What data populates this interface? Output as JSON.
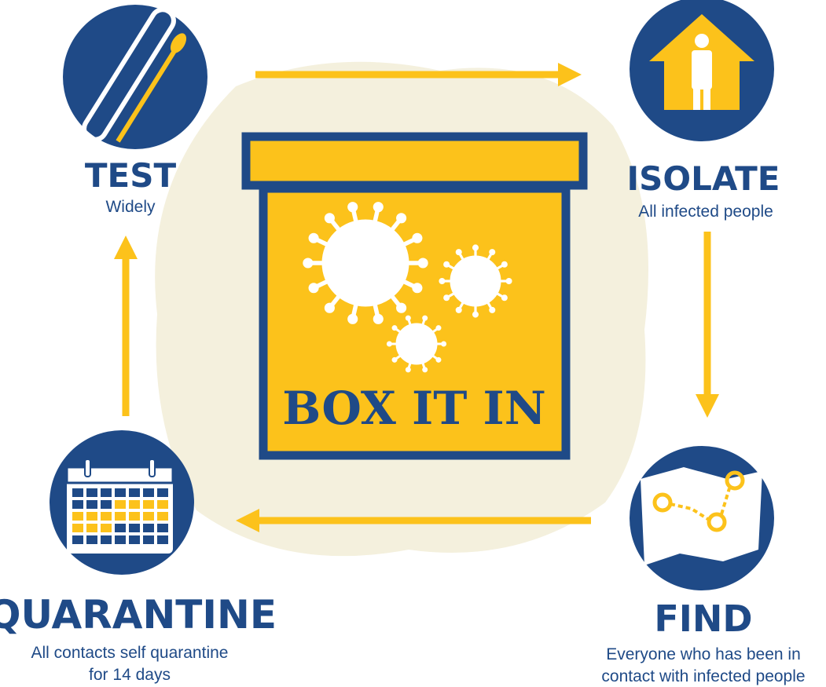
{
  "center": {
    "title": "BOX IT IN"
  },
  "steps": [
    {
      "title": "TEST",
      "subtitle": [
        "Widely"
      ]
    },
    {
      "title": "ISOLATE",
      "subtitle": [
        "All infected people"
      ]
    },
    {
      "title": "FIND",
      "subtitle": [
        "Everyone who has been in",
        "contact with infected people"
      ]
    },
    {
      "title": "QUARANTINE",
      "subtitle": [
        "All contacts self quarantine",
        "for 14 days"
      ]
    }
  ]
}
